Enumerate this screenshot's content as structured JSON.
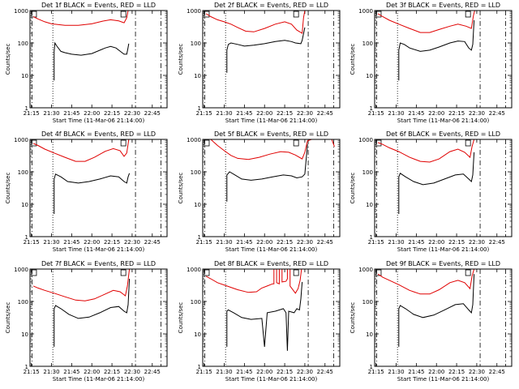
{
  "chart_data": {
    "type": "line",
    "y_scale": "log",
    "ylim": [
      1,
      1000
    ],
    "y_tick_labels": [
      "1",
      "10",
      "100",
      "1000"
    ],
    "x_tick_labels": [
      "21:15",
      "21:30",
      "21:45",
      "22:00",
      "22:15",
      "22:30",
      "22:45"
    ],
    "x_tick_minutes": [
      1275,
      1290,
      1305,
      1320,
      1335,
      1350,
      1365
    ],
    "xlim_minutes": [
      1274,
      1376
    ],
    "xlabel": "Start Time (11-Mar-06 21:14:00)",
    "ylabel": "Counts/sec",
    "series_colors": {
      "events": "#000000",
      "lld": "#e00000"
    },
    "markers": {
      "dashed": [
        1275.5,
        1352.5,
        1371.5
      ],
      "dotted": 1291,
      "boxes": [
        1277,
        1343.5
      ]
    },
    "panels": [
      {
        "title": "Det 1f BLACK = Events, RED = LLD",
        "events": [
          [
            1292,
            7
          ],
          [
            1292,
            55
          ],
          [
            1292.5,
            100
          ],
          [
            1294,
            80
          ],
          [
            1297,
            55
          ],
          [
            1300,
            50
          ],
          [
            1305,
            45
          ],
          [
            1312,
            42
          ],
          [
            1320,
            47
          ],
          [
            1330,
            70
          ],
          [
            1334,
            78
          ],
          [
            1338,
            70
          ],
          [
            1342,
            52
          ],
          [
            1344,
            45
          ],
          [
            1346,
            45
          ],
          [
            1346.8,
            65
          ],
          [
            1347.5,
            95
          ]
        ],
        "lld": [
          [
            1276.5,
            650
          ],
          [
            1280,
            550
          ],
          [
            1285,
            450
          ],
          [
            1290,
            390
          ],
          [
            1300,
            350
          ],
          [
            1310,
            350
          ],
          [
            1320,
            390
          ],
          [
            1328,
            470
          ],
          [
            1334,
            520
          ],
          [
            1340,
            480
          ],
          [
            1344,
            420
          ],
          [
            1346,
            600
          ],
          [
            1347,
            1000
          ]
        ]
      },
      {
        "title": "Det 2f BLACK = Events, RED = LLD",
        "events": [
          [
            1292,
            12
          ],
          [
            1292,
            60
          ],
          [
            1293,
            90
          ],
          [
            1295,
            100
          ],
          [
            1300,
            90
          ],
          [
            1305,
            80
          ],
          [
            1312,
            85
          ],
          [
            1320,
            95
          ],
          [
            1328,
            110
          ],
          [
            1335,
            120
          ],
          [
            1340,
            110
          ],
          [
            1343,
            100
          ],
          [
            1347,
            95
          ],
          [
            1348,
            120
          ],
          [
            1350,
            300
          ]
        ],
        "lld": [
          [
            1276.5,
            800
          ],
          [
            1280,
            650
          ],
          [
            1285,
            520
          ],
          [
            1290,
            450
          ],
          [
            1295,
            380
          ],
          [
            1300,
            300
          ],
          [
            1306,
            230
          ],
          [
            1312,
            220
          ],
          [
            1320,
            280
          ],
          [
            1328,
            380
          ],
          [
            1335,
            450
          ],
          [
            1340,
            380
          ],
          [
            1344,
            250
          ],
          [
            1348,
            200
          ],
          [
            1349,
            600
          ],
          [
            1350,
            1000
          ]
        ]
      },
      {
        "title": "Det 3f BLACK = Events, RED = LLD",
        "events": [
          [
            1292,
            7
          ],
          [
            1292,
            60
          ],
          [
            1293,
            100
          ],
          [
            1296,
            90
          ],
          [
            1300,
            70
          ],
          [
            1308,
            55
          ],
          [
            1315,
            60
          ],
          [
            1322,
            75
          ],
          [
            1330,
            100
          ],
          [
            1336,
            115
          ],
          [
            1341,
            110
          ],
          [
            1344,
            70
          ],
          [
            1346,
            60
          ],
          [
            1347,
            90
          ],
          [
            1348,
            500
          ]
        ],
        "lld": [
          [
            1276.5,
            800
          ],
          [
            1280,
            650
          ],
          [
            1285,
            500
          ],
          [
            1292,
            380
          ],
          [
            1300,
            280
          ],
          [
            1308,
            210
          ],
          [
            1315,
            210
          ],
          [
            1322,
            260
          ],
          [
            1330,
            330
          ],
          [
            1336,
            380
          ],
          [
            1342,
            330
          ],
          [
            1346,
            280
          ],
          [
            1347.5,
            700
          ],
          [
            1348.5,
            1000
          ]
        ]
      },
      {
        "title": "Det 4f BLACK = Events, RED = LLD",
        "events": [
          [
            1292,
            5
          ],
          [
            1292,
            60
          ],
          [
            1293,
            85
          ],
          [
            1297,
            70
          ],
          [
            1302,
            50
          ],
          [
            1310,
            45
          ],
          [
            1318,
            50
          ],
          [
            1326,
            60
          ],
          [
            1334,
            75
          ],
          [
            1340,
            70
          ],
          [
            1344,
            50
          ],
          [
            1346,
            45
          ],
          [
            1347,
            70
          ],
          [
            1348,
            90
          ]
        ],
        "lld": [
          [
            1276.5,
            750
          ],
          [
            1280,
            650
          ],
          [
            1285,
            500
          ],
          [
            1292,
            380
          ],
          [
            1300,
            280
          ],
          [
            1308,
            210
          ],
          [
            1315,
            210
          ],
          [
            1322,
            280
          ],
          [
            1330,
            430
          ],
          [
            1336,
            520
          ],
          [
            1341,
            450
          ],
          [
            1344,
            300
          ],
          [
            1346,
            380
          ],
          [
            1347.5,
            1000
          ]
        ]
      },
      {
        "title": "Det 5f BLACK = Events, RED = LLD",
        "events": [
          [
            1292,
            12
          ],
          [
            1292,
            80
          ],
          [
            1294,
            100
          ],
          [
            1298,
            80
          ],
          [
            1303,
            60
          ],
          [
            1310,
            55
          ],
          [
            1318,
            60
          ],
          [
            1326,
            70
          ],
          [
            1334,
            80
          ],
          [
            1340,
            75
          ],
          [
            1344,
            65
          ],
          [
            1348,
            70
          ],
          [
            1350,
            85
          ],
          [
            1352,
            700
          ]
        ],
        "lld": [
          [
            1275,
            1500
          ],
          [
            1280,
            1000
          ],
          [
            1285,
            650
          ],
          [
            1290,
            450
          ],
          [
            1295,
            320
          ],
          [
            1300,
            260
          ],
          [
            1308,
            240
          ],
          [
            1316,
            280
          ],
          [
            1324,
            350
          ],
          [
            1332,
            420
          ],
          [
            1338,
            400
          ],
          [
            1343,
            330
          ],
          [
            1348,
            250
          ],
          [
            1350,
            400
          ],
          [
            1352,
            900
          ],
          [
            1355,
            1500
          ],
          [
            1365,
            1700
          ],
          [
            1370,
            1100
          ],
          [
            1372,
            600
          ]
        ]
      },
      {
        "title": "Det 6f BLACK = Events, RED = LLD",
        "events": [
          [
            1292,
            5
          ],
          [
            1292,
            70
          ],
          [
            1293,
            90
          ],
          [
            1297,
            70
          ],
          [
            1303,
            50
          ],
          [
            1310,
            40
          ],
          [
            1318,
            45
          ],
          [
            1326,
            60
          ],
          [
            1334,
            80
          ],
          [
            1340,
            85
          ],
          [
            1344,
            60
          ],
          [
            1346,
            50
          ],
          [
            1347,
            80
          ],
          [
            1348,
            400
          ]
        ],
        "lld": [
          [
            1276.5,
            800
          ],
          [
            1280,
            700
          ],
          [
            1285,
            550
          ],
          [
            1292,
            420
          ],
          [
            1300,
            280
          ],
          [
            1308,
            210
          ],
          [
            1315,
            200
          ],
          [
            1322,
            250
          ],
          [
            1330,
            420
          ],
          [
            1336,
            500
          ],
          [
            1341,
            400
          ],
          [
            1345,
            280
          ],
          [
            1346.5,
            600
          ],
          [
            1348,
            1000
          ]
        ]
      },
      {
        "title": "Det 7f BLACK = Events, RED = LLD",
        "events": [
          [
            1292,
            4
          ],
          [
            1292,
            60
          ],
          [
            1293,
            75
          ],
          [
            1297,
            60
          ],
          [
            1303,
            40
          ],
          [
            1310,
            30
          ],
          [
            1318,
            33
          ],
          [
            1326,
            45
          ],
          [
            1334,
            65
          ],
          [
            1340,
            70
          ],
          [
            1344,
            50
          ],
          [
            1346,
            45
          ],
          [
            1347,
            80
          ],
          [
            1348,
            500
          ]
        ],
        "lld": [
          [
            1276.5,
            300
          ],
          [
            1280,
            260
          ],
          [
            1285,
            220
          ],
          [
            1292,
            180
          ],
          [
            1300,
            140
          ],
          [
            1308,
            110
          ],
          [
            1315,
            105
          ],
          [
            1322,
            120
          ],
          [
            1330,
            170
          ],
          [
            1336,
            220
          ],
          [
            1341,
            200
          ],
          [
            1345,
            150
          ],
          [
            1346.5,
            300
          ],
          [
            1348,
            1000
          ]
        ]
      },
      {
        "title": "Det 8f BLACK = Events, RED = LLD",
        "events": [
          [
            1292,
            4
          ],
          [
            1292,
            50
          ],
          [
            1293,
            55
          ],
          [
            1297,
            45
          ],
          [
            1303,
            32
          ],
          [
            1310,
            28
          ],
          [
            1318,
            30
          ],
          [
            1320,
            4
          ],
          [
            1322,
            45
          ],
          [
            1328,
            50
          ],
          [
            1334,
            60
          ],
          [
            1336,
            45
          ],
          [
            1337,
            3
          ],
          [
            1338,
            50
          ],
          [
            1342,
            45
          ],
          [
            1344,
            60
          ],
          [
            1346,
            55
          ],
          [
            1347,
            120
          ],
          [
            1348,
            400
          ]
        ],
        "lld": [
          [
            1276.5,
            600
          ],
          [
            1280,
            500
          ],
          [
            1285,
            380
          ],
          [
            1292,
            300
          ],
          [
            1300,
            230
          ],
          [
            1308,
            190
          ],
          [
            1314,
            200
          ],
          [
            1318,
            260
          ],
          [
            1322,
            300
          ],
          [
            1326,
            350
          ],
          [
            1327,
            350
          ],
          [
            1327,
            1500
          ],
          [
            1329,
            1500
          ],
          [
            1329,
            380
          ],
          [
            1331,
            350
          ],
          [
            1331,
            1500
          ],
          [
            1333,
            1500
          ],
          [
            1333,
            400
          ],
          [
            1336,
            420
          ],
          [
            1337,
            500
          ],
          [
            1337,
            1500
          ],
          [
            1339,
            1500
          ],
          [
            1339,
            300
          ],
          [
            1343,
            180
          ],
          [
            1345,
            250
          ],
          [
            1346.5,
            450
          ],
          [
            1347.5,
            1500
          ]
        ]
      },
      {
        "title": "Det 9f BLACK = Events, RED = LLD",
        "events": [
          [
            1292,
            4
          ],
          [
            1292,
            60
          ],
          [
            1293,
            75
          ],
          [
            1297,
            60
          ],
          [
            1303,
            40
          ],
          [
            1310,
            32
          ],
          [
            1318,
            38
          ],
          [
            1326,
            55
          ],
          [
            1334,
            80
          ],
          [
            1340,
            85
          ],
          [
            1344,
            55
          ],
          [
            1346,
            45
          ],
          [
            1347,
            80
          ],
          [
            1348,
            700
          ]
        ],
        "lld": [
          [
            1276.5,
            700
          ],
          [
            1280,
            560
          ],
          [
            1285,
            450
          ],
          [
            1292,
            330
          ],
          [
            1300,
            220
          ],
          [
            1308,
            170
          ],
          [
            1315,
            170
          ],
          [
            1322,
            230
          ],
          [
            1330,
            380
          ],
          [
            1336,
            450
          ],
          [
            1341,
            380
          ],
          [
            1345,
            250
          ],
          [
            1346.5,
            600
          ],
          [
            1348,
            1000
          ]
        ]
      }
    ]
  }
}
